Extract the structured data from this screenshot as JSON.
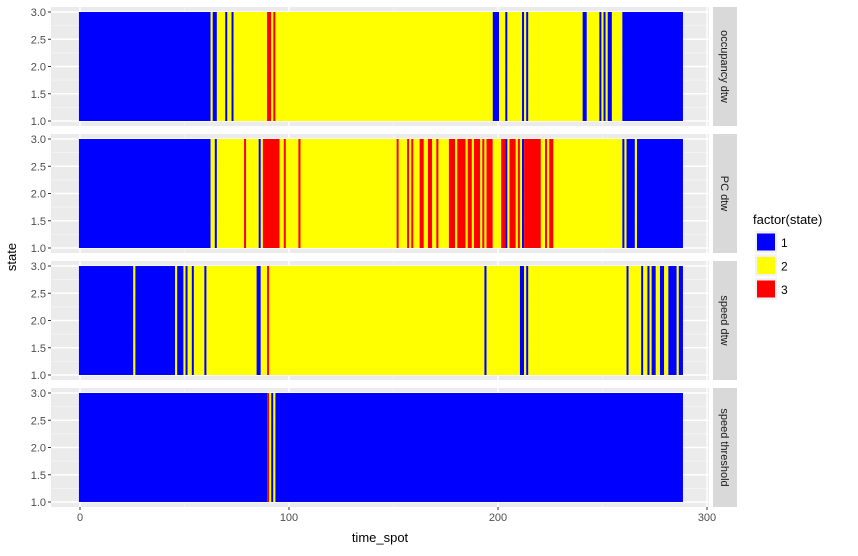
{
  "chart_data": {
    "type": "bar",
    "title": "",
    "xlabel": "time_spot",
    "ylabel": "state",
    "xlim": [
      -13,
      301
    ],
    "ylim": [
      0.95,
      3.05
    ],
    "x_ticks": [
      "0",
      "100",
      "200",
      "300"
    ],
    "x_tick_values": [
      0,
      100,
      200,
      300
    ],
    "y_ticks": [
      "1.0",
      "1.5",
      "2.0",
      "2.5",
      "3.0"
    ],
    "y_tick_values": [
      1.0,
      1.5,
      2.0,
      2.5,
      3.0
    ],
    "grid": true,
    "legend": {
      "title": "factor(state)",
      "placement": "right",
      "entries": [
        {
          "label": "1",
          "color": "#0000FF"
        },
        {
          "label": "2",
          "color": "#FFFF00"
        },
        {
          "label": "3",
          "color": "#FF0000"
        }
      ]
    },
    "state_colors": {
      "1": "#0000FF",
      "2": "#FFFF00",
      "3": "#FF0000"
    },
    "segments_format": "[start_time_spot, end_time_spot, state]",
    "facets": [
      {
        "label": "occupancy dtw",
        "segments": [
          [
            0,
            62,
            1
          ],
          [
            63,
            63,
            2
          ],
          [
            64,
            65,
            1
          ],
          [
            66,
            69,
            2
          ],
          [
            70,
            70,
            1
          ],
          [
            71,
            72,
            2
          ],
          [
            73,
            73,
            1
          ],
          [
            74,
            89,
            2
          ],
          [
            90,
            91,
            3
          ],
          [
            92,
            92,
            2
          ],
          [
            93,
            93,
            3
          ],
          [
            94,
            197,
            2
          ],
          [
            198,
            200,
            1
          ],
          [
            201,
            203,
            2
          ],
          [
            204,
            204,
            1
          ],
          [
            205,
            211,
            2
          ],
          [
            212,
            212,
            1
          ],
          [
            213,
            213,
            2
          ],
          [
            214,
            214,
            1
          ],
          [
            215,
            240,
            2
          ],
          [
            241,
            242,
            1
          ],
          [
            243,
            248,
            2
          ],
          [
            249,
            249,
            1
          ],
          [
            250,
            250,
            2
          ],
          [
            251,
            251,
            1
          ],
          [
            252,
            252,
            2
          ],
          [
            253,
            254,
            1
          ],
          [
            255,
            259,
            2
          ],
          [
            260,
            288,
            1
          ]
        ]
      },
      {
        "label": "PC dtw",
        "segments": [
          [
            0,
            62,
            1
          ],
          [
            63,
            64,
            2
          ],
          [
            65,
            65,
            1
          ],
          [
            66,
            78,
            2
          ],
          [
            79,
            79,
            3
          ],
          [
            80,
            85,
            2
          ],
          [
            86,
            86,
            1
          ],
          [
            87,
            87,
            2
          ],
          [
            88,
            95,
            3
          ],
          [
            96,
            97,
            2
          ],
          [
            98,
            98,
            3
          ],
          [
            99,
            104,
            2
          ],
          [
            105,
            105,
            3
          ],
          [
            106,
            151,
            2
          ],
          [
            152,
            152,
            3
          ],
          [
            153,
            156,
            2
          ],
          [
            157,
            157,
            3
          ],
          [
            158,
            158,
            2
          ],
          [
            159,
            159,
            3
          ],
          [
            160,
            162,
            2
          ],
          [
            163,
            164,
            3
          ],
          [
            165,
            166,
            2
          ],
          [
            167,
            168,
            3
          ],
          [
            169,
            170,
            2
          ],
          [
            171,
            171,
            3
          ],
          [
            172,
            176,
            2
          ],
          [
            177,
            179,
            3
          ],
          [
            180,
            180,
            2
          ],
          [
            181,
            184,
            3
          ],
          [
            185,
            185,
            2
          ],
          [
            186,
            187,
            3
          ],
          [
            188,
            188,
            2
          ],
          [
            189,
            191,
            3
          ],
          [
            192,
            192,
            2
          ],
          [
            193,
            193,
            3
          ],
          [
            194,
            194,
            2
          ],
          [
            195,
            197,
            3
          ],
          [
            198,
            201,
            2
          ],
          [
            202,
            203,
            3
          ],
          [
            204,
            204,
            1
          ],
          [
            205,
            205,
            2
          ],
          [
            206,
            208,
            3
          ],
          [
            209,
            209,
            2
          ],
          [
            210,
            210,
            3
          ],
          [
            211,
            211,
            2
          ],
          [
            212,
            212,
            1
          ],
          [
            213,
            220,
            3
          ],
          [
            221,
            222,
            2
          ],
          [
            223,
            223,
            3
          ],
          [
            224,
            224,
            2
          ],
          [
            225,
            226,
            3
          ],
          [
            227,
            259,
            2
          ],
          [
            260,
            260,
            1
          ],
          [
            261,
            261,
            2
          ],
          [
            262,
            265,
            1
          ],
          [
            266,
            266,
            2
          ],
          [
            267,
            288,
            1
          ]
        ]
      },
      {
        "label": "speed dtw",
        "segments": [
          [
            0,
            25,
            1
          ],
          [
            26,
            26,
            2
          ],
          [
            27,
            45,
            1
          ],
          [
            46,
            46,
            2
          ],
          [
            47,
            49,
            1
          ],
          [
            50,
            50,
            2
          ],
          [
            51,
            51,
            1
          ],
          [
            52,
            53,
            2
          ],
          [
            54,
            54,
            1
          ],
          [
            55,
            59,
            2
          ],
          [
            60,
            60,
            1
          ],
          [
            61,
            84,
            2
          ],
          [
            85,
            86,
            1
          ],
          [
            87,
            89,
            2
          ],
          [
            90,
            90,
            3
          ],
          [
            91,
            193,
            2
          ],
          [
            194,
            194,
            1
          ],
          [
            195,
            210,
            2
          ],
          [
            211,
            212,
            1
          ],
          [
            213,
            213,
            2
          ],
          [
            214,
            214,
            1
          ],
          [
            215,
            261,
            2
          ],
          [
            262,
            262,
            1
          ],
          [
            263,
            268,
            2
          ],
          [
            269,
            269,
            1
          ],
          [
            270,
            271,
            2
          ],
          [
            272,
            272,
            1
          ],
          [
            273,
            273,
            2
          ],
          [
            274,
            275,
            1
          ],
          [
            276,
            277,
            2
          ],
          [
            278,
            279,
            1
          ],
          [
            280,
            281,
            2
          ],
          [
            282,
            285,
            1
          ],
          [
            286,
            286,
            2
          ],
          [
            287,
            288,
            1
          ]
        ]
      },
      {
        "label": "speed threshold",
        "segments": [
          [
            0,
            89,
            1
          ],
          [
            90,
            90,
            3
          ],
          [
            91,
            91,
            2
          ],
          [
            92,
            92,
            1
          ],
          [
            93,
            93,
            2
          ],
          [
            94,
            288,
            1
          ]
        ]
      }
    ]
  }
}
